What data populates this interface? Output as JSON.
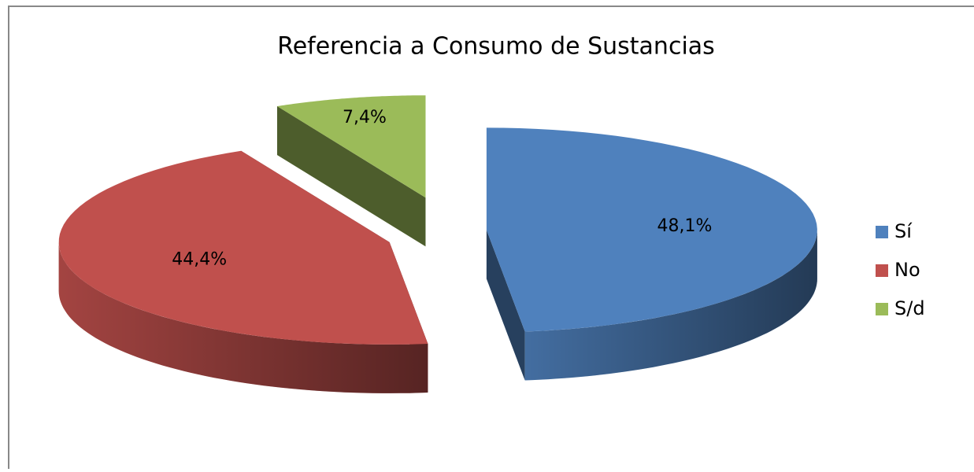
{
  "chart_data": {
    "type": "pie",
    "title": "Referencia a Consumo de Sustancias",
    "categories": [
      "Sí",
      "No",
      "S/d"
    ],
    "values": [
      48.1,
      44.4,
      7.4
    ],
    "value_labels": [
      "48,1%",
      "44,4%",
      "7,4%"
    ],
    "colors": [
      "#4f81bd",
      "#c0504d",
      "#9bbb59"
    ],
    "legend": "right",
    "exploded": true,
    "three_d": true
  }
}
